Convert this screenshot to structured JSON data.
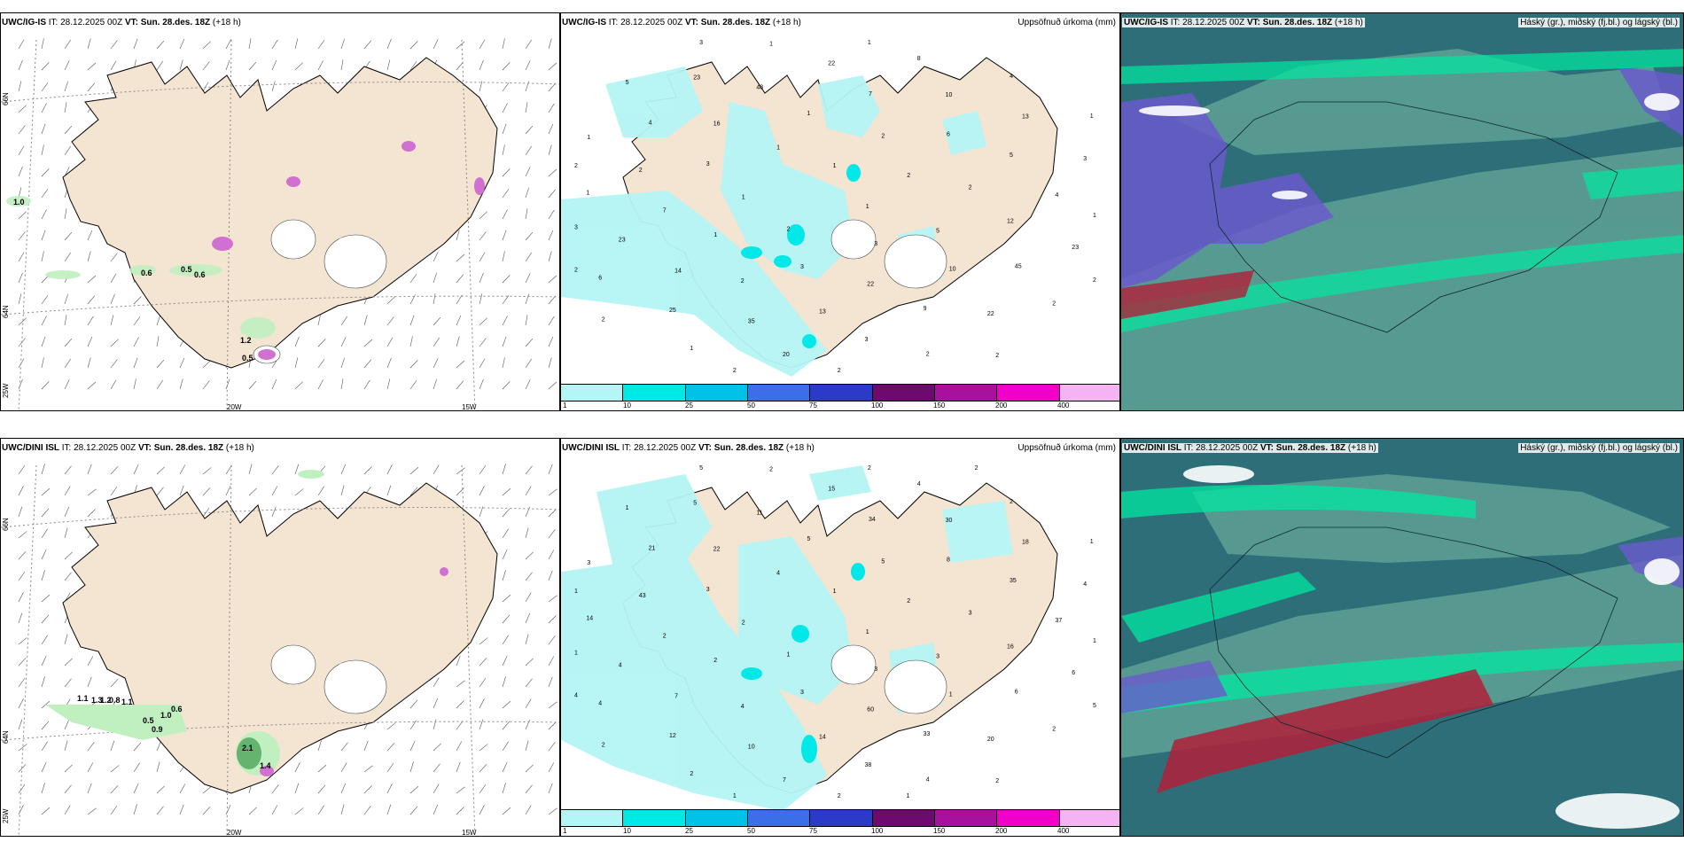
{
  "panels": {
    "top_wind": {
      "model": "UWC/IG-IS",
      "it_label": "IT:",
      "it_value": "28.12.2025 00Z",
      "vt_label": "VT:",
      "vt_value": "Sun. 28.des. 18Z",
      "lead": "(+18 h)"
    },
    "top_precip": {
      "model": "UWC/IG-IS",
      "it_label": "IT:",
      "it_value": "28.12.2025 00Z",
      "vt_label": "VT:",
      "vt_value": "Sun. 28.des. 18Z",
      "lead": "(+18 h)",
      "right_title": "Uppsöfnuð úrkoma (mm)"
    },
    "top_cloud": {
      "model": "UWC/IG-IS",
      "it_label": "IT:",
      "it_value": "28.12.2025 00Z",
      "vt_label": "VT:",
      "vt_value": "Sun. 28.des. 18Z",
      "lead": "(+18 h)",
      "right_title": "Háský (gr.), miðský (fj.bl.) og lágský (bl.)"
    },
    "bot_wind": {
      "model": "UWC/DINI ISL",
      "it_label": "IT:",
      "it_value": "28.12.2025 00Z",
      "vt_label": "VT:",
      "vt_value": "Sun. 28.des. 18Z",
      "lead": "(+18 h)"
    },
    "bot_precip": {
      "model": "UWC/DINI ISL",
      "it_label": "IT:",
      "it_value": "28.12.2025 00Z",
      "vt_label": "VT:",
      "vt_value": "Sun. 28.des. 18Z",
      "lead": "(+18 h)",
      "right_title": "Uppsöfnuð úrkoma (mm)"
    },
    "bot_cloud": {
      "model": "UWC/DINI ISL",
      "it_label": "IT:",
      "it_value": "28.12.2025 00Z",
      "vt_label": "VT:",
      "vt_value": "Sun. 28.des. 18Z",
      "lead": "(+18 h)",
      "right_title": "Háský (gr.), miðský (fj.bl.) og lágský (bl.)"
    }
  },
  "grid_labels": {
    "lat66": "66N",
    "lat64": "64N",
    "lon25": "25W",
    "lon20": "20W",
    "lon15": "15W"
  },
  "colorbar": {
    "ticks": [
      "1",
      "10",
      "25",
      "50",
      "75",
      "100",
      "150",
      "200",
      "400"
    ],
    "colors": [
      "#b4f5f5",
      "#00e8e8",
      "#00c2e8",
      "#3a6fe8",
      "#2b3bc8",
      "#6e0a6e",
      "#a8109e",
      "#f000c8",
      "#f4b4f4"
    ]
  },
  "top_wind_values": [
    "1.0",
    "0.6",
    "0.5",
    "0.6",
    "1.2",
    "0.5"
  ],
  "bot_wind_values": [
    "1.1",
    "1.3",
    "1.2",
    "0.8",
    "1.1",
    "0.6",
    "1.0",
    "0.5",
    "0.9",
    "2.1",
    "1.4"
  ],
  "top_precip_values": [
    "1",
    "2",
    "1",
    "3",
    "1",
    "2",
    "3",
    "1",
    "5",
    "1",
    "2",
    "22",
    "3",
    "2",
    "2",
    "1",
    "10",
    "7",
    "6",
    "13",
    "16",
    "12",
    "14",
    "7",
    "9",
    "2",
    "5",
    "35",
    "48",
    "45",
    "23",
    "10",
    "3",
    "4",
    "4",
    "25",
    "22",
    "22",
    "1",
    "13",
    "20",
    "23",
    "23",
    "6",
    "8",
    "2",
    "1",
    "3",
    "1",
    "1",
    "2",
    "3",
    "4",
    "2",
    "5",
    "1",
    "2",
    "1",
    "2",
    "2",
    "1",
    "2",
    "3",
    "2",
    "2"
  ],
  "bot_precip_values": [
    "1",
    "1",
    "1",
    "3",
    "2",
    "2",
    "3",
    "4",
    "3",
    "2",
    "5",
    "60",
    "3",
    "3",
    "4",
    "5",
    "1",
    "2",
    "8",
    "14",
    "22",
    "16",
    "7",
    "34",
    "33",
    "43",
    "35",
    "10",
    "11",
    "6",
    "4",
    "30",
    "38",
    "21",
    "37",
    "12",
    "15",
    "20",
    "14",
    "18",
    "7",
    "5",
    "6",
    "4",
    "4",
    "4",
    "3",
    "4",
    "2",
    "2",
    "2",
    "1",
    "2",
    "2",
    "1",
    "1",
    "2",
    "2",
    "2",
    "1",
    "1",
    "1",
    "5",
    "5",
    "4",
    "2",
    "1"
  ],
  "colors": {
    "land": "#f4e4d2",
    "sea": "#ffffff",
    "precip_light": "#b4f5f5",
    "cloud_sea": "#2e6e78",
    "cloud_land": "#5c9e94"
  }
}
